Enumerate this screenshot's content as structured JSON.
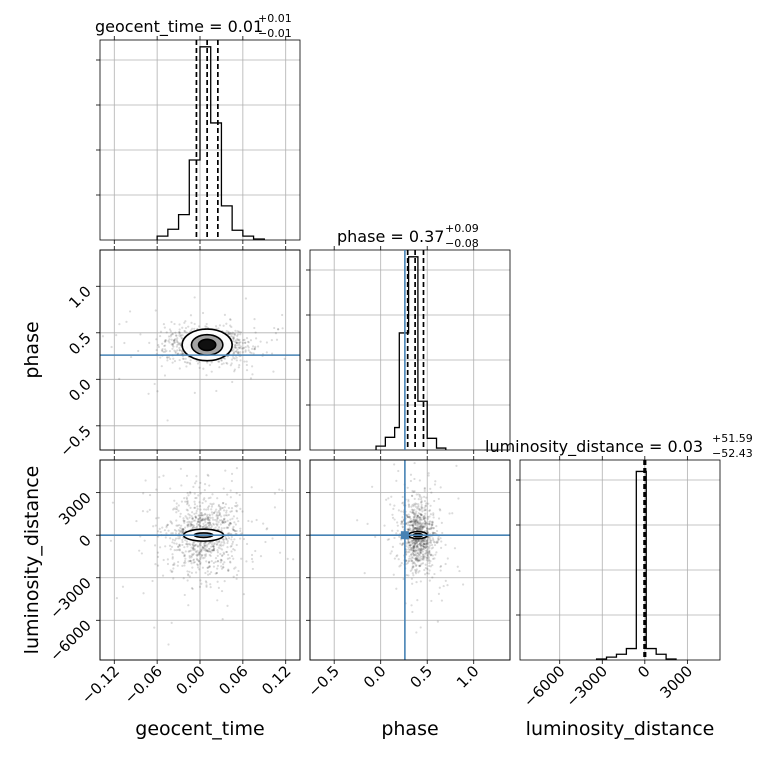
{
  "chart_data": {
    "type": "corner",
    "parameters": [
      {
        "name": "geocent_time",
        "label": "geocent_time",
        "title": "geocent_time = 0.01",
        "title_sup": "+0.01",
        "title_sub": "−0.01",
        "median": 0.01,
        "err_minus": 0.01,
        "err_plus": 0.01,
        "range": [
          -0.14,
          0.14
        ],
        "ticks": [
          -0.12,
          -0.06,
          0.0,
          0.06,
          0.12
        ],
        "tick_labels": [
          "−0.12",
          "−0.06",
          "0.00",
          "0.06",
          "0.12"
        ],
        "hist": {
          "bin_edges": [
            -0.06,
            -0.045,
            -0.03,
            -0.015,
            0.0,
            0.015,
            0.03,
            0.045,
            0.06,
            0.075,
            0.09
          ],
          "counts": [
            0.4,
            1.1,
            2.6,
            8.2,
            19.8,
            12.0,
            3.5,
            1.0,
            0.4,
            0.1
          ],
          "quantiles": [
            -0.005,
            0.01,
            0.025
          ],
          "ymax": 20.5
        }
      },
      {
        "name": "phase",
        "label": "phase",
        "title": "phase = 0.37",
        "title_sup": "+0.09",
        "title_sub": "−0.08",
        "median": 0.37,
        "err_minus": 0.08,
        "err_plus": 0.09,
        "truth": 0.26,
        "range": [
          -0.76,
          1.39
        ],
        "ticks": [
          -0.5,
          0.0,
          0.5,
          1.0
        ],
        "tick_labels": [
          "−0.5",
          "0.0",
          "0.5",
          "1.0"
        ],
        "hist": {
          "bin_edges": [
            -0.05,
            0.05,
            0.15,
            0.2,
            0.3,
            0.4,
            0.5,
            0.6,
            0.7
          ],
          "counts": [
            0.4,
            1.3,
            2.3,
            12.0,
            19.8,
            5.0,
            1.2,
            0.2
          ],
          "quantiles": [
            0.29,
            0.37,
            0.46
          ],
          "ymax": 20.5
        }
      },
      {
        "name": "luminosity_distance",
        "label": "luminosity_distance",
        "title": "luminosity_distance = 0.03",
        "title_sup": "+51.59",
        "title_sub": "−52.43",
        "median": 0.03,
        "err_minus": 52.43,
        "err_plus": 51.59,
        "range": [
          -8800,
          5300
        ],
        "ticks": [
          -6000,
          -3000,
          0,
          3000
        ],
        "tick_labels": [
          "−6000",
          "−3000",
          "0",
          "3000"
        ],
        "hist": {
          "bin_edges": [
            -3400,
            -2700,
            -2000,
            -1300,
            -600,
            100,
            800,
            1500,
            2200
          ],
          "counts": [
            0.1,
            0.3,
            0.6,
            1.2,
            19.8,
            1.2,
            0.6,
            0.1
          ],
          "quantiles": [
            -52.4,
            0.03,
            51.6
          ],
          "ymax": 21
        }
      }
    ],
    "y_ticks": {
      "phase": [
        -0.5,
        0.0,
        0.5,
        1.0
      ],
      "phase_labels": [
        "−0.5",
        "0.0",
        "0.5",
        "1.0"
      ],
      "luminosity_distance": [
        -6000,
        -3000,
        0,
        3000
      ],
      "luminosity_distance_labels": [
        "−6000",
        "−3000",
        "0",
        "3000"
      ]
    },
    "contours_2d": [
      {
        "x": "geocent_time",
        "y": "phase",
        "center": [
          0.01,
          0.37
        ],
        "spread": [
          0.028,
          0.09
        ],
        "levels": [
          [
            0.012,
            0.06
          ],
          [
            0.022,
            0.11
          ],
          [
            0.035,
            0.17
          ]
        ]
      },
      {
        "x": "geocent_time",
        "y": "luminosity_distance",
        "center": [
          0.005,
          0
        ],
        "spread": [
          0.025,
          1400
        ],
        "levels": [
          [
            0.013,
            160
          ],
          [
            0.028,
            420
          ]
        ]
      },
      {
        "x": "phase",
        "y": "luminosity_distance",
        "center": [
          0.4,
          0
        ],
        "spread": [
          0.09,
          1200
        ],
        "levels": [
          [
            0.05,
            110
          ],
          [
            0.1,
            250
          ]
        ]
      }
    ],
    "grid": true,
    "truth_color": "#4682b4"
  }
}
